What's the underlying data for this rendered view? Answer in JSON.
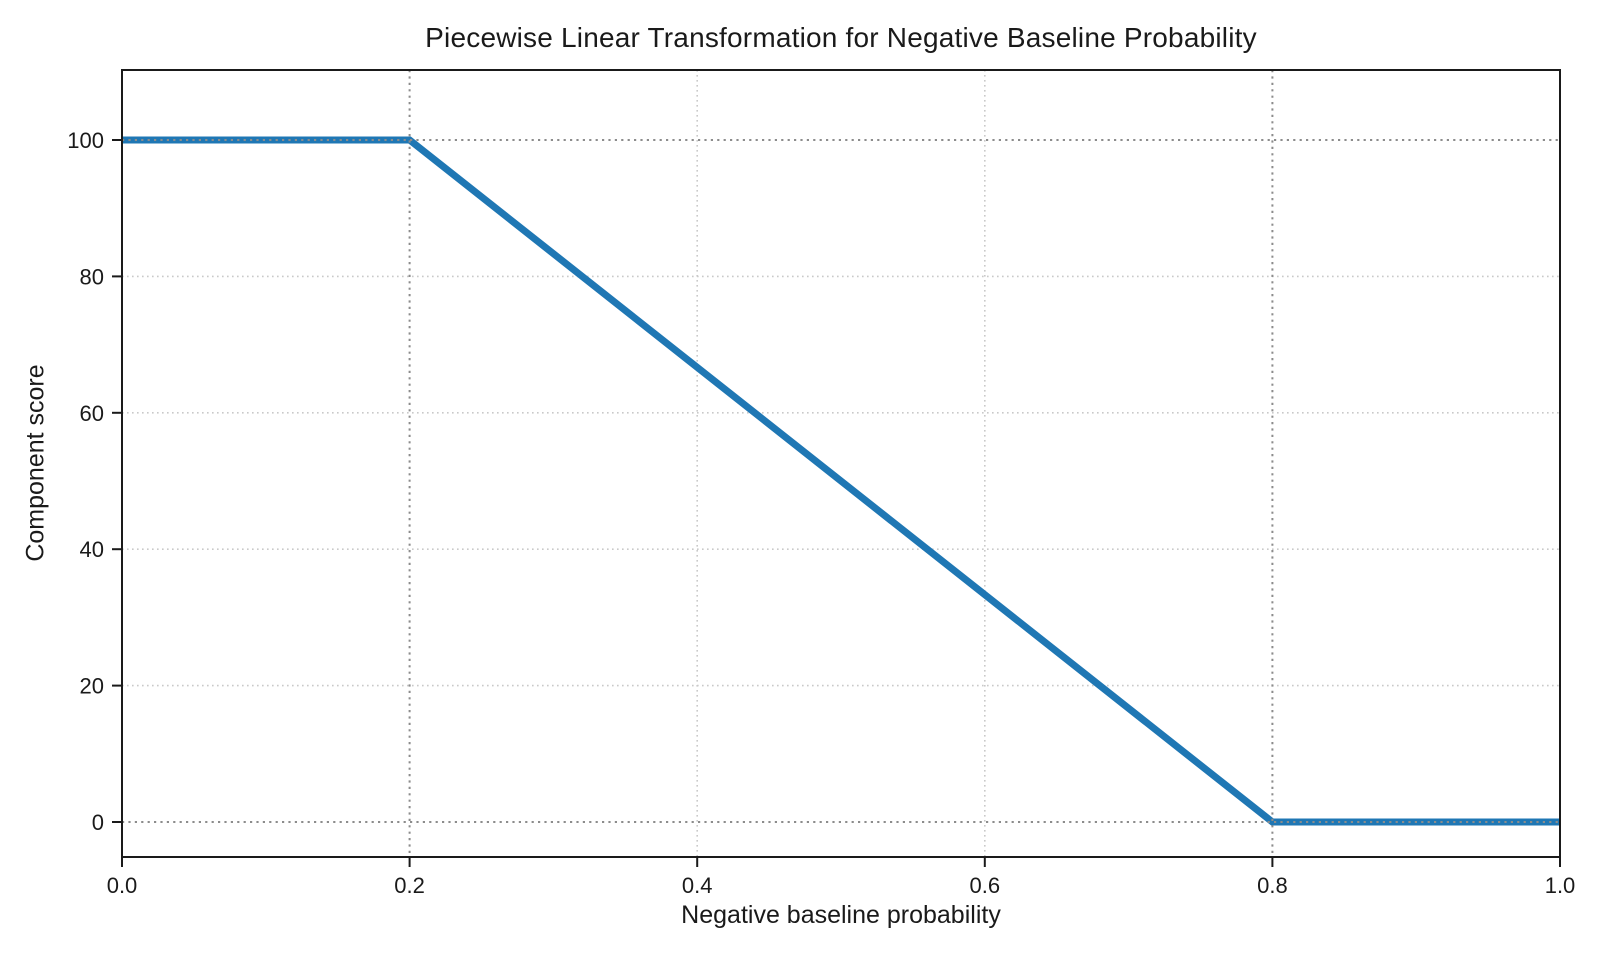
{
  "chart_data": {
    "type": "line",
    "title": "Piecewise Linear Transformation for Negative Baseline Probability",
    "xlabel": "Negative baseline probability",
    "ylabel": "Component score",
    "xlim": [
      0.0,
      1.0
    ],
    "ylim": [
      -5,
      110
    ],
    "xticks": [
      0.0,
      0.2,
      0.4,
      0.6,
      0.8,
      1.0
    ],
    "xticklabels": [
      "0.0",
      "0.2",
      "0.4",
      "0.6",
      "0.8",
      "1.0"
    ],
    "yticks": [
      0,
      20,
      40,
      60,
      80,
      100
    ],
    "yticklabels": [
      "0",
      "20",
      "40",
      "60",
      "80",
      "100"
    ],
    "grid": {
      "light_x": [
        0.4,
        0.6
      ],
      "light_y": [
        20,
        40,
        60,
        80
      ],
      "light_color": "#c9c9c9",
      "light_style": "dotted"
    },
    "reference_lines": {
      "x": [
        0.2,
        0.8
      ],
      "y": [
        0,
        100
      ],
      "color": "#8c8c8c",
      "style": "dotted"
    },
    "series": [
      {
        "name": "piecewise-transformation",
        "color": "#1f77b4",
        "line_width": 7,
        "points": [
          [
            0.0,
            100
          ],
          [
            0.2,
            100
          ],
          [
            0.8,
            0
          ],
          [
            1.0,
            0
          ]
        ]
      }
    ],
    "breakpoints": {
      "flat_high_until_x": 0.2,
      "flat_low_from_x": 0.8,
      "high_value": 100,
      "low_value": 0
    },
    "spine_color": "#1a1a1a",
    "background": "#ffffff",
    "legend": "none"
  }
}
